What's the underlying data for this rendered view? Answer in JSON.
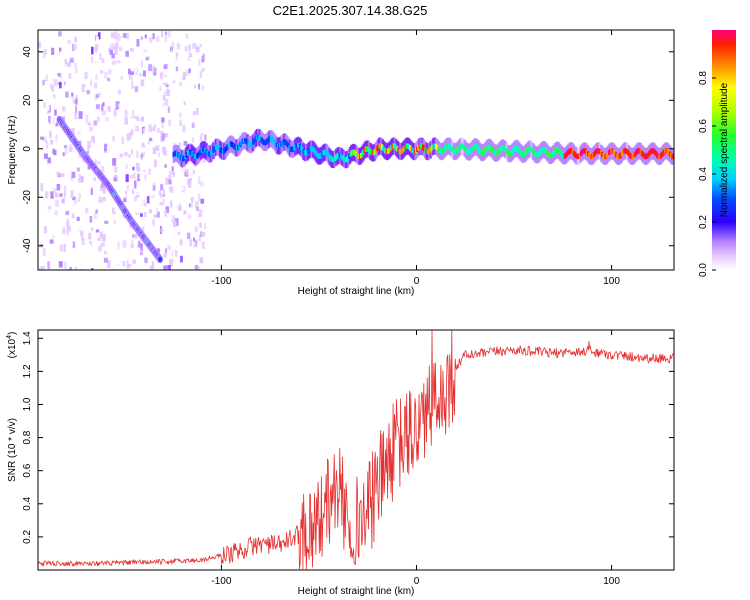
{
  "title": "C2E1.2025.307.14.38.G25",
  "chart_data": [
    {
      "type": "heatmap",
      "name": "spectrogram",
      "xlabel": "Height of straight line (km)",
      "ylabel": "Frequency (Hz)",
      "xlim": [
        -194,
        132
      ],
      "ylim": [
        -50,
        49
      ],
      "xticks": [
        -100,
        0,
        100
      ],
      "yticks": [
        -40,
        -20,
        0,
        20,
        40
      ],
      "colorbar": {
        "label": "Normalized spectral amplitude",
        "range": [
          0,
          1
        ],
        "ticks": [
          0.0,
          0.2,
          0.4,
          0.6,
          0.8
        ],
        "tick_labels": [
          "0.0",
          "0.2",
          "0.4",
          "0.6",
          "0.8"
        ],
        "colors": [
          "#ffffff",
          "#e6c8ff",
          "#b47fff",
          "#7a1fff",
          "#2a00ff",
          "#0040ff",
          "#00c8ff",
          "#00ffc8",
          "#20ff40",
          "#a0ff00",
          "#ffff00",
          "#ff9000",
          "#ff2000",
          "#ff0080"
        ]
      },
      "features": [
        {
          "name": "descending tone",
          "x": [
            -183,
            -170,
            -158,
            -146,
            -131
          ],
          "y": [
            12,
            -3,
            -15,
            -30,
            -46
          ]
        },
        {
          "name": "carrier line",
          "x": [
            -120,
            -100,
            -80,
            -60,
            -40,
            -20,
            0,
            20,
            50,
            80,
            100,
            132
          ],
          "y": [
            -3,
            0,
            4,
            0,
            -4,
            0,
            0,
            0,
            -1,
            -2,
            -2,
            -2
          ]
        }
      ]
    },
    {
      "type": "line",
      "name": "snr",
      "xlabel": "Height of straight line (km)",
      "ylabel": "SNR (10 * v/v)",
      "y_multiplier": "(x10",
      "y_multiplier_exp": "4",
      "y_multiplier_close": ")",
      "xlim": [
        -194,
        132
      ],
      "ylim": [
        0,
        1.45
      ],
      "xticks": [
        -100,
        0,
        100
      ],
      "yticks": [
        0.2,
        0.4,
        0.6,
        0.8,
        1.0,
        1.2,
        1.4
      ],
      "ytick_labels": [
        "0.2",
        "0.4",
        "0.6",
        "0.8",
        "1.0",
        "1.2",
        "1.4"
      ],
      "color": "#e53030",
      "envelope": {
        "x": [
          -194,
          -160,
          -130,
          -110,
          -95,
          -80,
          -70,
          -60,
          -50,
          -45,
          -40,
          -35,
          -30,
          -25,
          -20,
          -15,
          -10,
          -5,
          0,
          5,
          10,
          15,
          20,
          25,
          30,
          40,
          50,
          60,
          70,
          80,
          90,
          100,
          110,
          120,
          132
        ],
        "y": [
          0.04,
          0.04,
          0.05,
          0.06,
          0.1,
          0.16,
          0.15,
          0.22,
          0.3,
          0.42,
          0.5,
          0.3,
          0.3,
          0.35,
          0.5,
          0.65,
          0.75,
          0.8,
          0.85,
          0.95,
          1.0,
          1.1,
          1.22,
          1.3,
          1.3,
          1.32,
          1.33,
          1.32,
          1.31,
          1.32,
          1.32,
          1.3,
          1.29,
          1.28,
          1.28
        ]
      }
    }
  ]
}
